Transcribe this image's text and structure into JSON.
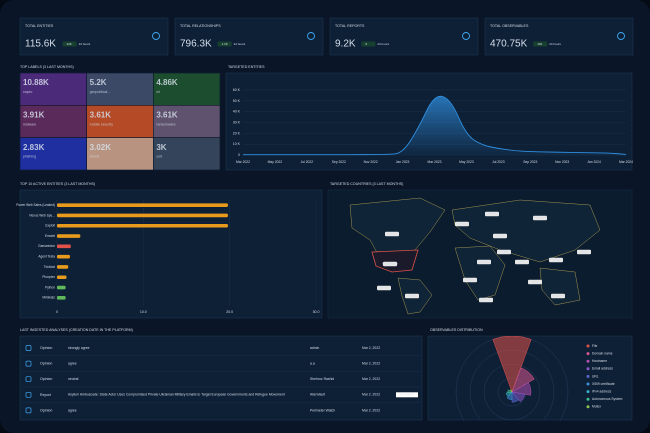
{
  "kpis": [
    {
      "title": "TOTAL ENTITIES",
      "value": "115.6K",
      "delta": "226",
      "period": "24 hours"
    },
    {
      "title": "TOTAL RELATIONSHIPS",
      "value": "796.3K",
      "delta": "1.2K",
      "period": "24 hours"
    },
    {
      "title": "TOTAL REPORTS",
      "value": "9.2K",
      "delta": "9",
      "period": "24 hours"
    },
    {
      "title": "TOTAL OBSERVABLES",
      "value": "470.75K",
      "delta": "102",
      "period": "24 hours"
    }
  ],
  "map": {
    "title": "TARGETED COUNTRIES (3 LAST MONTHS)",
    "countries": [
      "Canada",
      "United States",
      "Mexico",
      "Brazil",
      "Iceland",
      "Finland",
      "Russia",
      "Ukraine",
      "Turkey",
      "Iran",
      "India",
      "China",
      "Japan",
      "Egypt",
      "Nigeria",
      "South Africa",
      "Australia"
    ]
  },
  "table": {
    "title": "LAST INGESTED ANALYSES (CREATION DATE IN THE PLATFORM)",
    "rows": [
      {
        "type": "Opinion",
        "name": "strongly agree",
        "author": "admin",
        "date": "Mar 2, 2022"
      },
      {
        "type": "Opinion",
        "name": "agree",
        "author": "a.a",
        "date": "Mar 2, 2022"
      },
      {
        "type": "Opinion",
        "name": "neutral",
        "author": "Shehroz Rashid",
        "date": "Mar 2, 2022"
      },
      {
        "type": "Report",
        "name": "Asylum Ambuscade: State Actor Uses Compromised Private Ukrainian Military Emails to Target European Governments and Refugee Movement",
        "author": "AlienVault",
        "date": "Mar 2, 2022",
        "marking": "TLP:WHITE"
      },
      {
        "type": "Opinion",
        "name": "agree",
        "author": "Perimeter Watch",
        "date": "Mar 2, 2022"
      }
    ]
  },
  "chart_data": [
    {
      "type": "treemap",
      "title": "TOP LABELS (3 LAST MONTHS)",
      "categories": [
        "capec",
        "geopolitical...",
        "ml",
        "malware",
        "mobile security",
        "ransomware",
        "phishing",
        "cnnvd",
        "cert"
      ],
      "values": [
        10880,
        5200,
        4860,
        3910,
        3610,
        3610,
        2830,
        3020,
        3000
      ],
      "value_labels": [
        "10.88K",
        "5.2K",
        "4.86K",
        "3.91K",
        "3.61K",
        "3.61K",
        "2.83K",
        "3.02K",
        "3K"
      ],
      "colors": [
        "#4b2a7a",
        "#3b4866",
        "#1b4d2e",
        "#5a2a5a",
        "#b44a26",
        "#5e526e",
        "#1f2fa0",
        "#b89480",
        "#34445a"
      ]
    },
    {
      "type": "area",
      "title": "TARGETED ENTITIES",
      "color": "#2f8fe0",
      "categories": [
        "Mar 2022",
        null,
        "May 2022",
        null,
        "Jul 2022",
        null,
        "Sep 2022",
        null,
        "Nov 2022",
        null,
        "Jan 2023",
        null,
        "Mar 2023",
        null,
        "May 2023",
        null,
        "Jul 2023",
        null,
        "Sep 2023",
        null,
        "Nov 2023",
        null,
        "Jan 2024",
        null,
        "Mar 2024"
      ],
      "values": [
        300,
        300,
        300,
        300,
        300,
        300,
        300,
        300,
        400,
        500,
        1500,
        25000,
        56000,
        52000,
        18000,
        9000,
        6000,
        4000,
        3000,
        2800,
        2500,
        2200,
        2000,
        1800,
        500
      ],
      "ylim": [
        0,
        60000
      ],
      "yticks": [
        0,
        {
          "value": 10000,
          "label": "10 K"
        },
        {
          "value": 20000,
          "label": "20 K"
        },
        {
          "value": 30000,
          "label": "30 K"
        },
        {
          "value": 40000,
          "label": "40 K"
        },
        {
          "value": 50000,
          "label": "50 K"
        },
        {
          "value": 60000,
          "label": "60 K"
        }
      ]
    },
    {
      "type": "hbar",
      "title": "TOP 10 ACTIVE ENTITIES (3 LAST MONTHS)",
      "categories": [
        "Power Web Sales (Leaked)",
        "Nexus Web Spe...",
        "Exploit",
        "Emotet",
        "Gamaredon",
        "Agent Tesla",
        "Trickbot",
        "Phorpiex",
        "Python",
        "Mimikatz"
      ],
      "values": [
        19800,
        19800,
        19800,
        2700,
        1600,
        1500,
        1300,
        1100,
        1000,
        1000
      ],
      "colors": [
        "#e89a1c",
        "#e89a1c",
        "#e89a1c",
        "#e89a1c",
        "#e0524a",
        "#e89a1c",
        "#e89a1c",
        "#e89a1c",
        "#5fb85a",
        "#5fb85a"
      ],
      "xlim": [
        0,
        30000
      ],
      "xticks": [
        0,
        {
          "value": 10000,
          "label": "10.0"
        },
        {
          "value": 20000,
          "label": "20.0"
        },
        {
          "value": 30000,
          "label": "30.0"
        }
      ]
    },
    {
      "type": "polar",
      "title": "OBSERVABLES DISTRIBUTION",
      "categories": [
        "File",
        "Domain name",
        "Hostname",
        "Email address",
        "URL",
        "X509 certificate",
        "IPv4 address",
        "Autonomous System",
        "Mutex"
      ],
      "values": [
        65000,
        30000,
        22000,
        15000,
        12000,
        9000,
        7000,
        5000,
        3000
      ],
      "colors": [
        "#e0524a",
        "#d9568f",
        "#b34fb0",
        "#8a56c8",
        "#5a66d0",
        "#3f8fd8",
        "#35b0c8",
        "#3fbf8f",
        "#8fc04a"
      ]
    }
  ]
}
